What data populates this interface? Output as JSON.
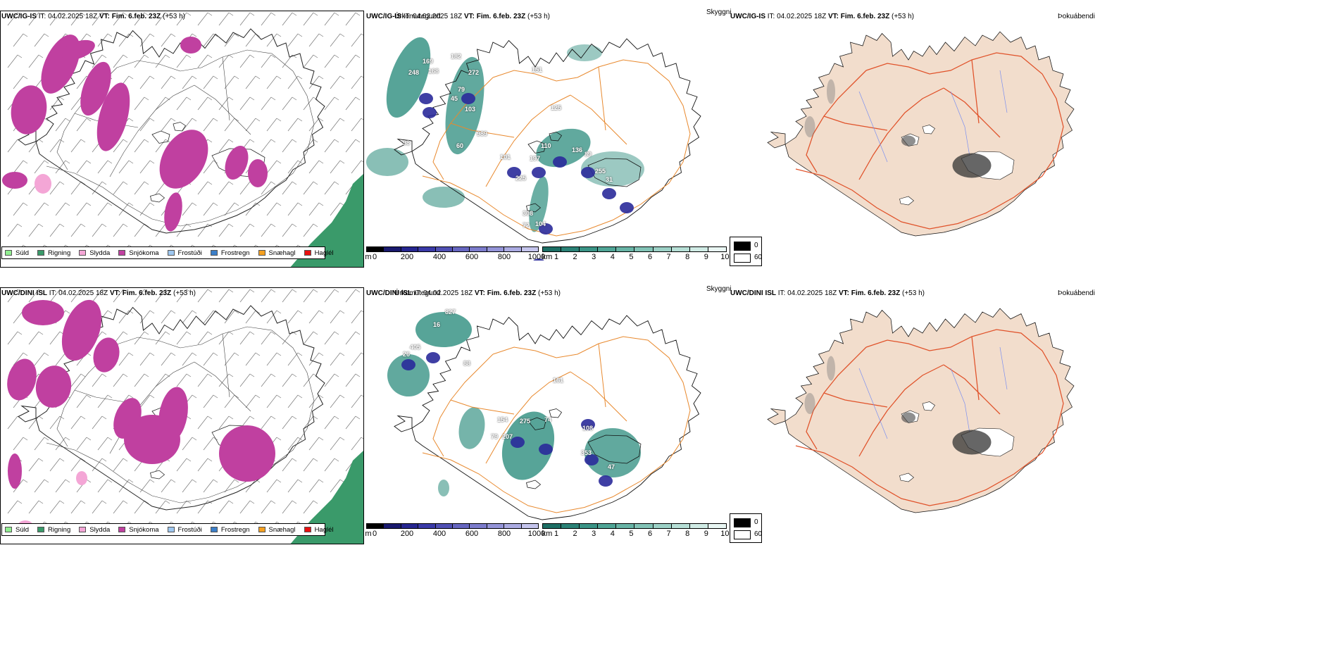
{
  "rows": [
    {
      "model": "UWC/IG-IS",
      "it_label": "IT:",
      "it_value": "04.02.2025 18Z",
      "vt_label": "VT:",
      "vt_value": "Fim. 6.feb. 23Z",
      "lead": "(+53 h)"
    },
    {
      "model": "UWC/DINI ISL",
      "it_label": "IT:",
      "it_value": "04.02.2025 18Z",
      "vt_label": "VT:",
      "vt_value": "Fim. 6.feb. 23Z",
      "lead": "(+53 h)"
    }
  ],
  "panel_titles": {
    "precip": "Úrkomutegund",
    "cloud": "Skyggni",
    "fog": "Þokuábendi"
  },
  "precip_legend": [
    {
      "label": "Súld",
      "color": "#90ee90"
    },
    {
      "label": "Rigning",
      "color": "#3a9a6a"
    },
    {
      "label": "Slydda",
      "color": "#f4a6d6"
    },
    {
      "label": "Snjókoma",
      "color": "#c040a0"
    },
    {
      "label": "Frostúði",
      "color": "#9ec7f0"
    },
    {
      "label": "Frostregn",
      "color": "#3c7fc8"
    },
    {
      "label": "Snæhagl",
      "color": "#f5a020"
    },
    {
      "label": "Haglél",
      "color": "#e81010"
    }
  ],
  "ceiling_scale": {
    "unit": "m",
    "labels": [
      "0",
      "200",
      "400",
      "600",
      "800",
      "1000"
    ],
    "colors": [
      "#000000",
      "#1a1a6e",
      "#262690",
      "#3a3aa8",
      "#5050b4",
      "#6666c0",
      "#7c7ccc",
      "#9494d8",
      "#ababe2",
      "#c4c4ec"
    ]
  },
  "visibility_scale": {
    "unit": "km",
    "labels": [
      "1",
      "2",
      "3",
      "4",
      "5",
      "6",
      "7",
      "8",
      "9",
      "10"
    ],
    "colors": [
      "#1c6e64",
      "#2a8276",
      "#3a9486",
      "#4fa596",
      "#68b4a6",
      "#82c3b6",
      "#9cd1c6",
      "#b6dfd6",
      "#d0ebe5",
      "#e9f6f3"
    ]
  },
  "fog_legend": [
    {
      "label": "0",
      "color": "#000000"
    },
    {
      "label": "60",
      "color": "#ffffff"
    }
  ],
  "cloud_labels_top": [
    "182",
    "169",
    "248",
    "168",
    "272",
    "151",
    "79",
    "45",
    "103",
    "125",
    "989",
    "98",
    "60",
    "110",
    "136",
    "89",
    "101",
    "197",
    "255",
    "31",
    "225",
    "308",
    "72",
    "104"
  ],
  "cloud_labels_bottom": [
    "827",
    "16",
    "405",
    "26",
    "88",
    "161",
    "154",
    "275",
    "74",
    "108",
    "79",
    "207",
    "353",
    "47"
  ],
  "colors": {
    "snow": "#c040a0",
    "rain": "#3a9a6a",
    "sleet": "#f4a6d6",
    "road": "#e8892e",
    "fog_land": "#f2ddcc",
    "fog_road": "#e0522a",
    "river": "#7a8ef0"
  }
}
